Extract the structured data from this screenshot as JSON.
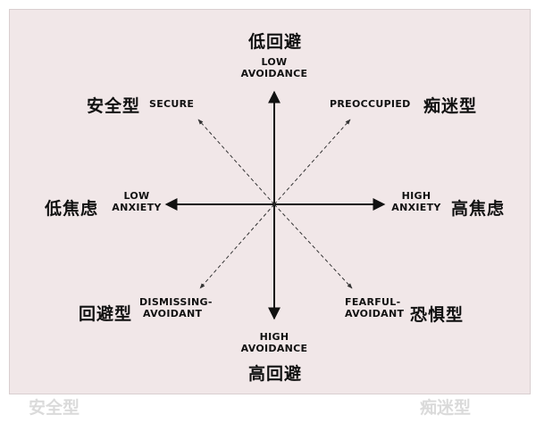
{
  "diagram": {
    "top": {
      "cn": "低回避",
      "en_line1": "LOW",
      "en_line2": "AVOIDANCE"
    },
    "bottom": {
      "cn": "高回避",
      "en_line1": "HIGH",
      "en_line2": "AVOIDANCE"
    },
    "left": {
      "cn": "低焦虑",
      "en_line1": "LOW",
      "en_line2": "ANXIETY"
    },
    "right": {
      "cn": "高焦虑",
      "en_line1": "HIGH",
      "en_line2": "ANXIETY"
    },
    "top_left": {
      "cn": "安全型",
      "en_line1": "SECURE"
    },
    "top_right": {
      "cn": "痴迷型",
      "en_line1": "PREOCCUPIED"
    },
    "bottom_left": {
      "cn": "回避型",
      "en_line1": "DISMISSING-",
      "en_line2": "AVOIDANT"
    },
    "bottom_right": {
      "cn": "恐惧型",
      "en_line1": "FEARFUL-",
      "en_line2": "AVOIDANT"
    }
  },
  "colors": {
    "panel_bg": "#f1e7e8",
    "axis": "#111111",
    "dashed": "#333333"
  }
}
